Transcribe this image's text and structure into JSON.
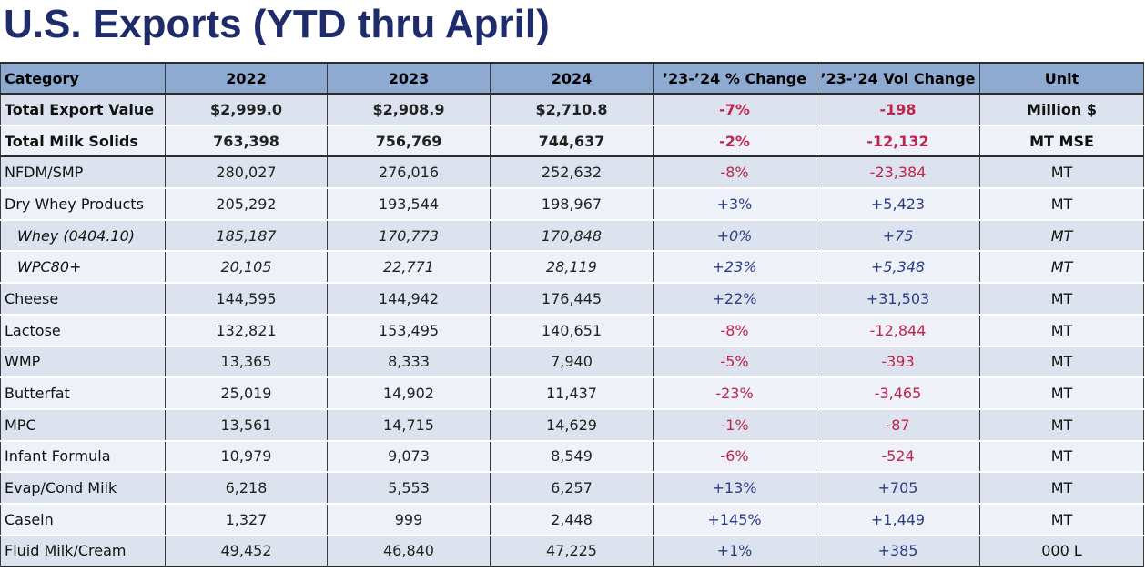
{
  "title": "U.S. Exports (YTD thru April)",
  "colors": {
    "title": "#1f2c6b",
    "header_bg": "#8eaad1",
    "negative": "#c0234d",
    "positive": "#2b3e83"
  },
  "table": {
    "headers": [
      "Category",
      "2022",
      "2023",
      "2024",
      "’23-’24 % Change",
      "’23-’24 Vol Change",
      "Unit"
    ],
    "rows": [
      {
        "category": "Total Export Value",
        "y2022": "$2,999.0",
        "y2023": "$2,908.9",
        "y2024": "$2,710.8",
        "pct": "-7%",
        "vol": "-198",
        "unit": "Million $"
      },
      {
        "category": "Total Milk Solids",
        "y2022": "763,398",
        "y2023": "756,769",
        "y2024": "744,637",
        "pct": "-2%",
        "vol": "-12,132",
        "unit": "MT MSE"
      },
      {
        "category": "NFDM/SMP",
        "y2022": "280,027",
        "y2023": "276,016",
        "y2024": "252,632",
        "pct": "-8%",
        "vol": "-23,384",
        "unit": "MT"
      },
      {
        "category": "Dry Whey Products",
        "y2022": "205,292",
        "y2023": "193,544",
        "y2024": "198,967",
        "pct": "+3%",
        "vol": "+5,423",
        "unit": "MT"
      },
      {
        "category": "Whey (0404.10)",
        "y2022": "185,187",
        "y2023": "170,773",
        "y2024": "170,848",
        "pct": "+0%",
        "vol": "+75",
        "unit": "MT"
      },
      {
        "category": "WPC80+",
        "y2022": "20,105",
        "y2023": "22,771",
        "y2024": "28,119",
        "pct": "+23%",
        "vol": "+5,348",
        "unit": "MT"
      },
      {
        "category": "Cheese",
        "y2022": "144,595",
        "y2023": "144,942",
        "y2024": "176,445",
        "pct": "+22%",
        "vol": "+31,503",
        "unit": "MT"
      },
      {
        "category": "Lactose",
        "y2022": "132,821",
        "y2023": "153,495",
        "y2024": "140,651",
        "pct": "-8%",
        "vol": "-12,844",
        "unit": "MT"
      },
      {
        "category": "WMP",
        "y2022": "13,365",
        "y2023": "8,333",
        "y2024": "7,940",
        "pct": "-5%",
        "vol": "-393",
        "unit": "MT"
      },
      {
        "category": "Butterfat",
        "y2022": "25,019",
        "y2023": "14,902",
        "y2024": "11,437",
        "pct": "-23%",
        "vol": "-3,465",
        "unit": "MT"
      },
      {
        "category": "MPC",
        "y2022": "13,561",
        "y2023": "14,715",
        "y2024": "14,629",
        "pct": "-1%",
        "vol": "-87",
        "unit": "MT"
      },
      {
        "category": "Infant Formula",
        "y2022": "10,979",
        "y2023": "9,073",
        "y2024": "8,549",
        "pct": "-6%",
        "vol": "-524",
        "unit": "MT"
      },
      {
        "category": "Evap/Cond Milk",
        "y2022": "6,218",
        "y2023": "5,553",
        "y2024": "6,257",
        "pct": "+13%",
        "vol": "+705",
        "unit": "MT"
      },
      {
        "category": "Casein",
        "y2022": "1,327",
        "y2023": "999",
        "y2024": "2,448",
        "pct": "+145%",
        "vol": "+1,449",
        "unit": "MT"
      },
      {
        "category": "Fluid Milk/Cream",
        "y2022": "49,452",
        "y2023": "46,840",
        "y2024": "47,225",
        "pct": "+1%",
        "vol": "+385",
        "unit": "000 L"
      }
    ]
  }
}
